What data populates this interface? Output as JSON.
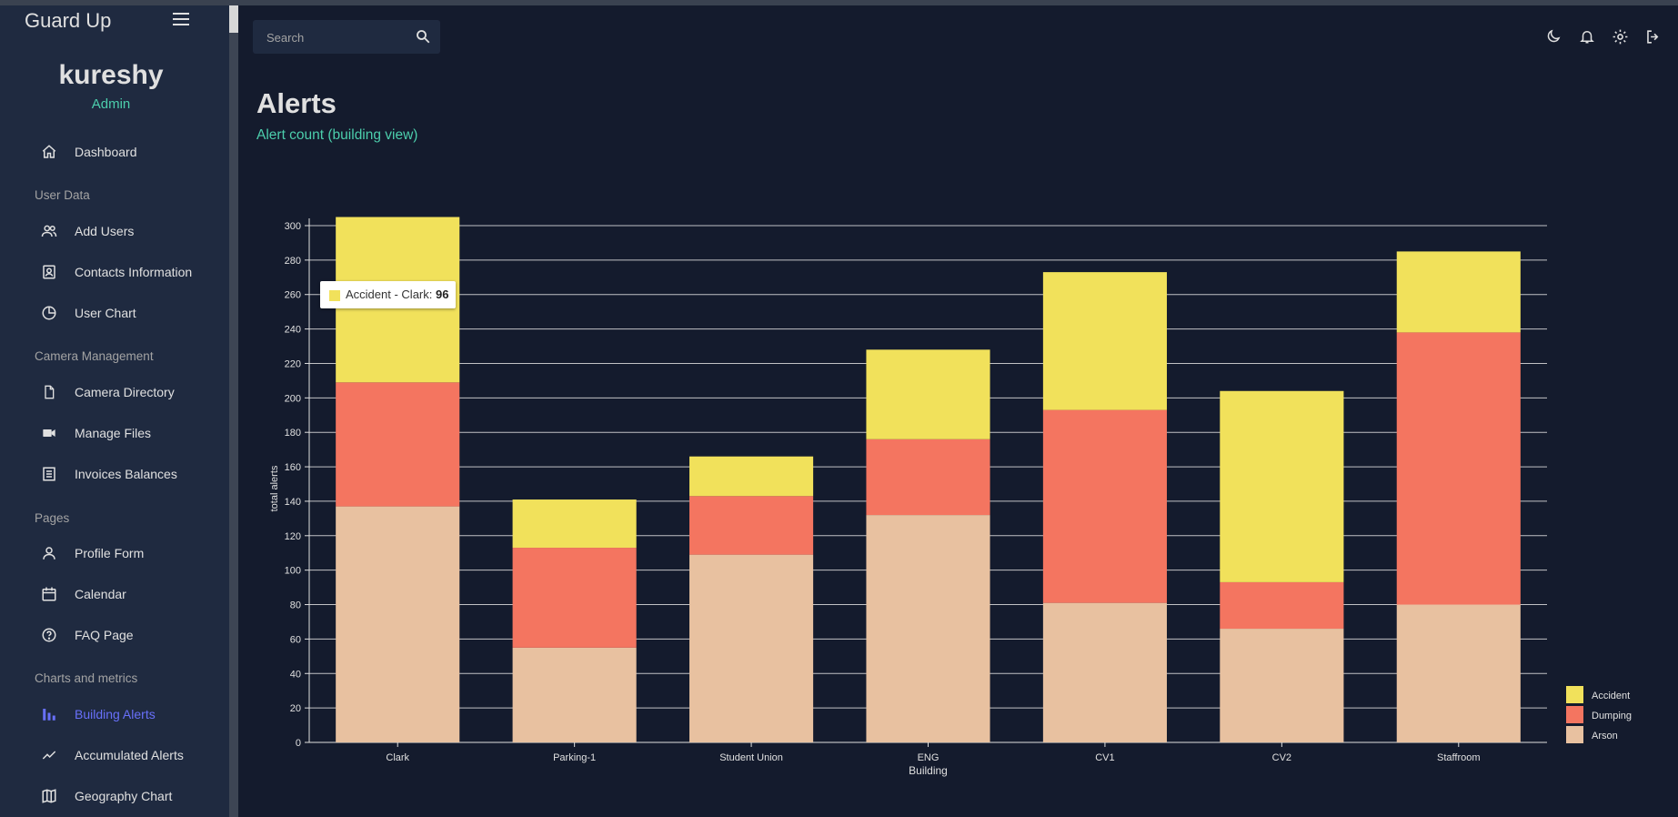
{
  "app": {
    "brand": "Guard Up"
  },
  "user": {
    "name": "kureshy",
    "role": "Admin"
  },
  "sidebar": {
    "dashboard": "Dashboard",
    "sections": {
      "user_data": "User Data",
      "camera_management": "Camera Management",
      "pages": "Pages",
      "charts": "Charts and metrics"
    },
    "items": {
      "add_users": "Add Users",
      "contacts": "Contacts Information",
      "user_chart": "User Chart",
      "camera_directory": "Camera Directory",
      "manage_files": "Manage Files",
      "invoices": "Invoices Balances",
      "profile_form": "Profile Form",
      "calendar": "Calendar",
      "faq": "FAQ Page",
      "building_alerts": "Building Alerts",
      "accumulated_alerts": "Accumulated Alerts",
      "geography_chart": "Geography Chart"
    }
  },
  "search": {
    "placeholder": "Search"
  },
  "header": {
    "title": "Alerts",
    "subtitle": "Alert count (building view)"
  },
  "tooltip": {
    "label": "Accident - Clark:",
    "value": "96"
  },
  "colors": {
    "accident": "#f1e15b",
    "dumping": "#f47560",
    "arson": "#e8c1a0",
    "accent_green": "#4cceac",
    "accent_blue": "#6870fa"
  },
  "chart_data": {
    "type": "bar",
    "stacked": true,
    "xlabel": "Building",
    "ylabel": "total alerts",
    "ylim": [
      0,
      300
    ],
    "yticks": [
      0,
      20,
      40,
      60,
      80,
      100,
      120,
      140,
      160,
      180,
      200,
      220,
      240,
      260,
      280,
      300
    ],
    "categories": [
      "Clark",
      "Parking-1",
      "Student Union",
      "ENG",
      "CV1",
      "CV2",
      "Staffroom"
    ],
    "series": [
      {
        "name": "Arson",
        "color": "#e8c1a0",
        "values": [
          137,
          55,
          109,
          132,
          81,
          66,
          80
        ]
      },
      {
        "name": "Dumping",
        "color": "#f47560",
        "values": [
          72,
          58,
          34,
          44,
          112,
          27,
          158
        ]
      },
      {
        "name": "Accident",
        "color": "#f1e15b",
        "values": [
          96,
          28,
          23,
          52,
          80,
          111,
          47
        ]
      }
    ],
    "legend": [
      "Accident",
      "Dumping",
      "Arson"
    ],
    "legend_position": "bottom-right"
  }
}
